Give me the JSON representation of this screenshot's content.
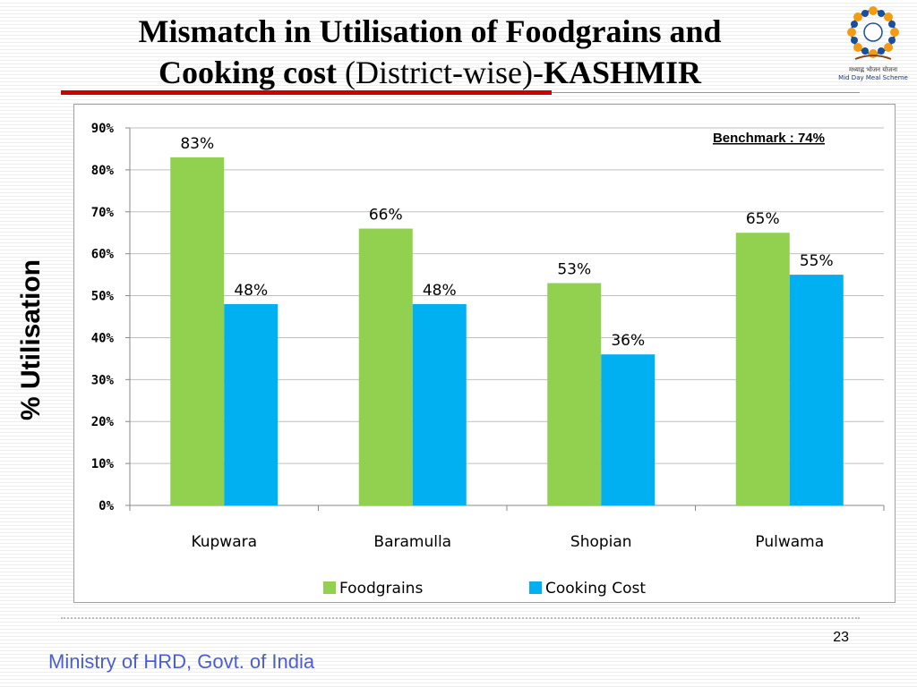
{
  "title": {
    "line1": "Mismatch in Utilisation of Foodgrains and",
    "line2_bold": "Cooking cost",
    "line2_normal": "(District-wise)-",
    "line2_bold2": "KASHMIR"
  },
  "logo": {
    "text_hindi": "मध्याह्न भोजन योजना",
    "text_en": "Mid Day Meal Scheme"
  },
  "chart_data": {
    "type": "bar",
    "categories": [
      "Kupwara",
      "Baramulla",
      "Shopian",
      "Pulwama"
    ],
    "series": [
      {
        "name": "Foodgrains",
        "values": [
          83,
          66,
          53,
          65
        ],
        "labels": [
          "83%",
          "66%",
          "53%",
          "65%"
        ],
        "color": "#92d050"
      },
      {
        "name": "Cooking Cost",
        "values": [
          48,
          48,
          36,
          55
        ],
        "labels": [
          "48%",
          "48%",
          "36%",
          "55%"
        ],
        "color": "#00b0f0"
      }
    ],
    "ylim": [
      0,
      90
    ],
    "yticks": [
      "0%",
      "10%",
      "20%",
      "30%",
      "40%",
      "50%",
      "60%",
      "70%",
      "80%",
      "90%"
    ],
    "ylabel": "% Utilisation",
    "xlabel": "",
    "annotation": "Benchmark : 74%",
    "legend_position": "bottom",
    "grid": true
  },
  "footer": {
    "page_number": "23",
    "ministry": "Ministry of HRD, Govt. of India"
  }
}
